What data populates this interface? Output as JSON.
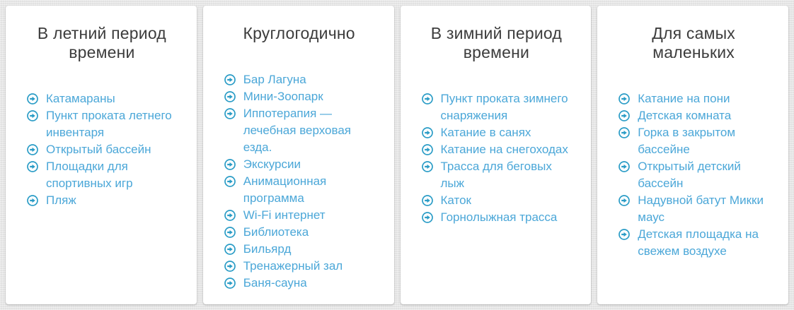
{
  "theme": {
    "page_background": "#e9e9e9",
    "card_background": "#ffffff",
    "title_color": "#3c3c3c",
    "link_color": "#4ba7d8",
    "icon_color": "#2a9cc6"
  },
  "icons": {
    "list_bullet": "circle-arrow-right-icon"
  },
  "columns": [
    {
      "title": "В летний период времени",
      "items": [
        "Катамараны",
        "Пункт проката летнего инвентаря",
        "Открытый бассейн",
        "Площадки для спортивных игр",
        "Пляж"
      ]
    },
    {
      "title": "Круглогодично",
      "items": [
        "Бар Лагуна",
        "Мини-Зоопарк",
        "Иппотерапия — лечебная верховая езда.",
        "Экскурсии",
        "Анимационная программа",
        "Wi-Fi интернет",
        "Библиотека",
        "Бильярд",
        "Тренажерный зал",
        "Баня-сауна"
      ]
    },
    {
      "title": "В зимний период времени",
      "items": [
        "Пункт проката зимнего снаряжения",
        "Катание в санях",
        "Катание на снегоходах",
        "Трасса для беговых лыж",
        "Каток",
        "Горнолыжная трасса"
      ]
    },
    {
      "title": "Для самых маленьких",
      "items": [
        "Катание на пони",
        "Детская комната",
        "Горка в закрытом бассейне",
        "Открытый детский бассейн",
        "Надувной батут Микки маус",
        "Детская площадка на свежем воздухе"
      ]
    }
  ]
}
